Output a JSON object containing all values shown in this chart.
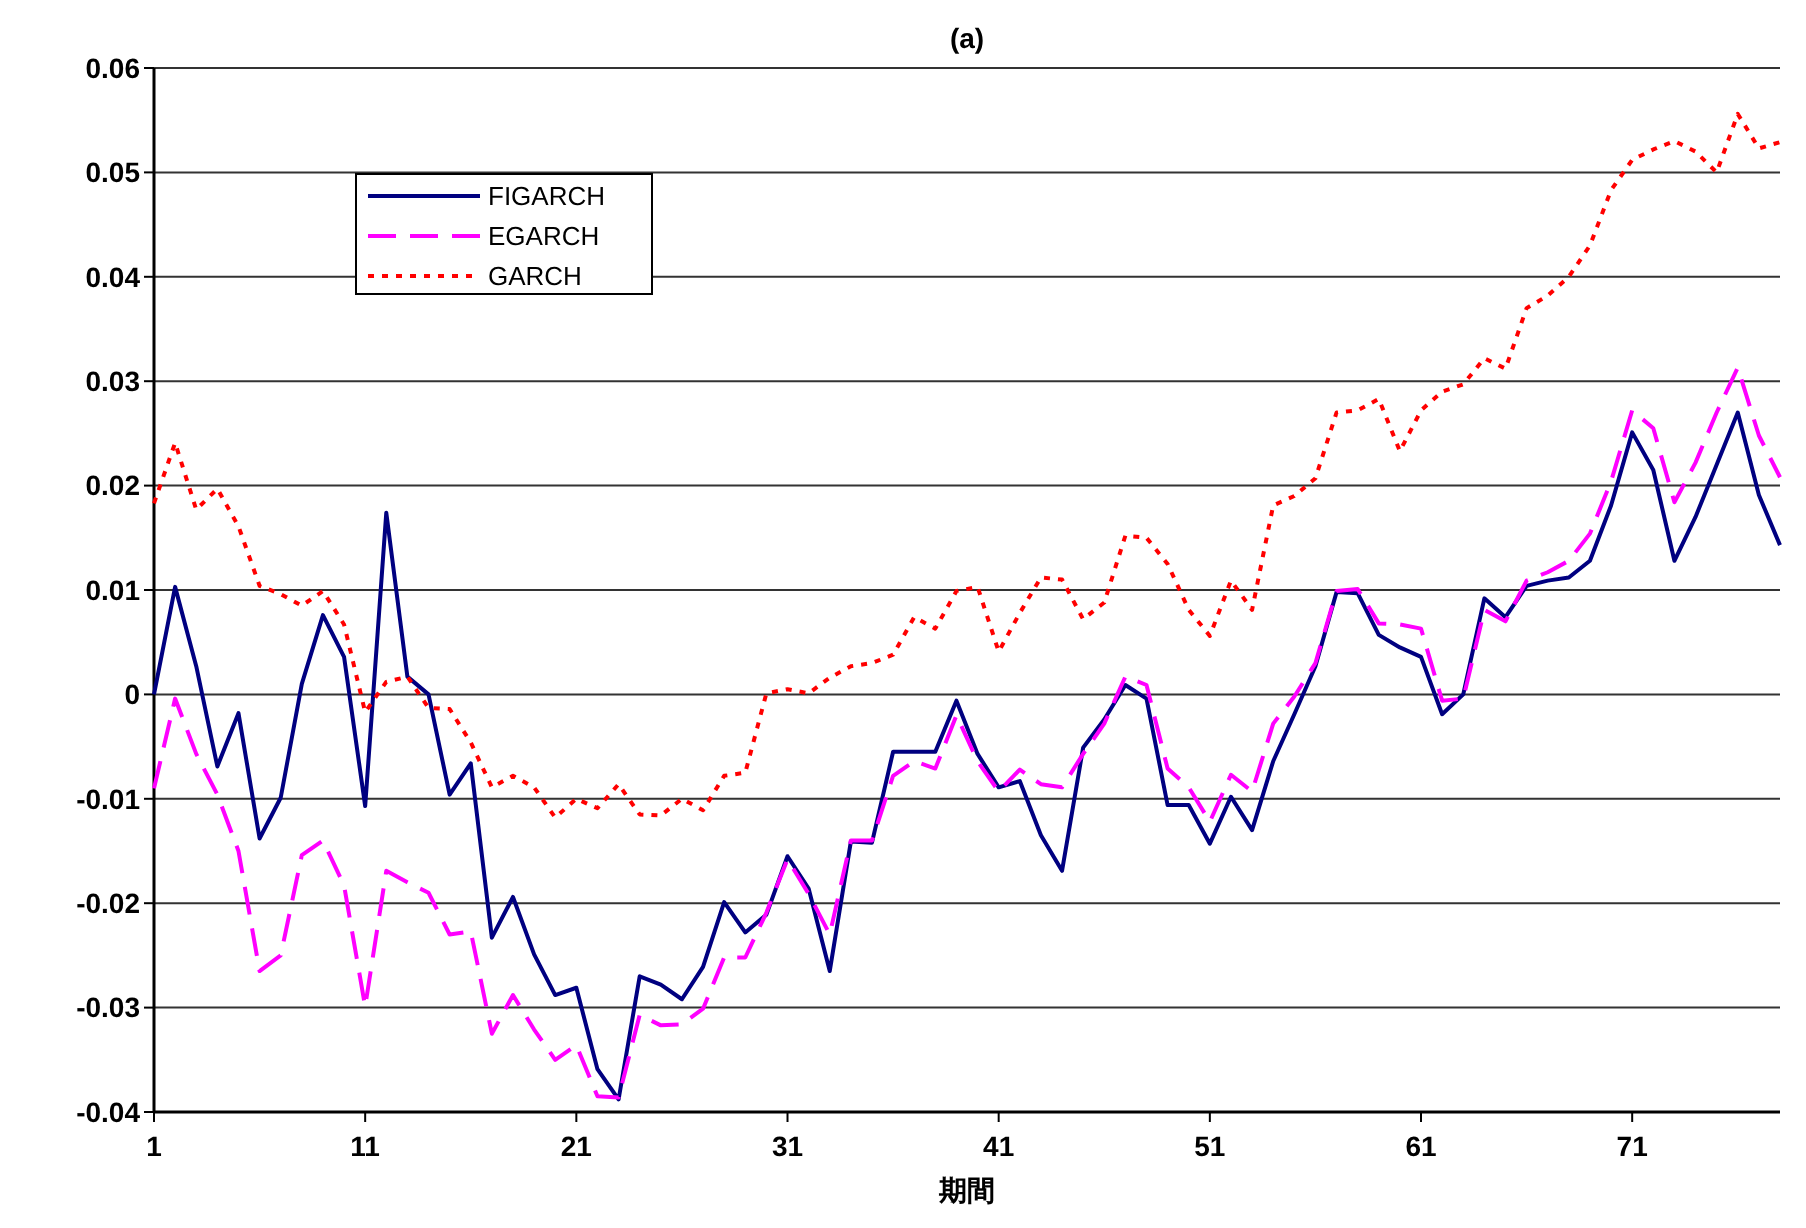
{
  "chart_data": {
    "type": "line",
    "title": "(a)",
    "xlabel": "期間",
    "x": [
      1,
      2,
      3,
      4,
      5,
      6,
      7,
      8,
      9,
      10,
      11,
      12,
      13,
      14,
      15,
      16,
      17,
      18,
      19,
      20,
      21,
      22,
      23,
      24,
      25,
      26,
      27,
      28,
      29,
      30,
      31,
      32,
      33,
      34,
      35,
      36,
      37,
      38,
      39,
      40,
      41,
      42,
      43,
      44,
      45,
      46,
      47,
      48,
      49,
      50,
      51,
      52,
      53,
      54,
      55,
      56,
      57,
      58,
      59,
      60,
      61,
      62,
      63,
      64,
      65,
      66,
      67,
      68,
      69,
      70,
      71,
      72,
      73,
      74,
      75,
      76,
      77,
      78
    ],
    "xlim": [
      1,
      78
    ],
    "xticks": [
      1,
      11,
      21,
      31,
      41,
      51,
      61,
      71
    ],
    "ylim": [
      -0.04,
      0.06
    ],
    "yticks": [
      -0.04,
      -0.03,
      -0.02,
      -0.01,
      0,
      0.01,
      0.02,
      0.03,
      0.04,
      0.05,
      0.06
    ],
    "grid": "y",
    "legend": "top left",
    "series": [
      {
        "name": "FIGARCH",
        "color": "#000080",
        "line_style": "solid",
        "values": [
          0.0,
          0.0103,
          0.0027,
          -0.0069,
          -0.0018,
          -0.0138,
          -0.0099,
          0.001,
          0.0076,
          0.0036,
          -0.0107,
          0.0174,
          0.0017,
          0.0,
          -0.0096,
          -0.0066,
          -0.0233,
          -0.0194,
          -0.0249,
          -0.0288,
          -0.0281,
          -0.0359,
          -0.0388,
          -0.027,
          -0.0278,
          -0.0292,
          -0.0261,
          -0.0199,
          -0.0228,
          -0.0211,
          -0.0155,
          -0.0186,
          -0.0265,
          -0.0141,
          -0.0142,
          -0.0055,
          -0.0055,
          -0.0055,
          -0.0006,
          -0.0057,
          -0.0089,
          -0.0083,
          -0.0135,
          -0.0169,
          -0.0051,
          -0.0024,
          0.0009,
          -0.0004,
          -0.0106,
          -0.0106,
          -0.0143,
          -0.0098,
          -0.013,
          -0.0064,
          -0.0019,
          0.0027,
          0.0098,
          0.0097,
          0.0057,
          0.0045,
          0.0036,
          -0.0019,
          0.0,
          0.0092,
          0.0074,
          0.0104,
          0.0109,
          0.0112,
          0.0128,
          0.0181,
          0.0251,
          0.0215,
          0.0128,
          0.017,
          0.022,
          0.027,
          0.0191,
          0.0143
        ]
      },
      {
        "name": "EGARCH",
        "color": "#ff00ff",
        "line_style": "dashed",
        "values": [
          -0.009,
          -0.0004,
          -0.0057,
          -0.0096,
          -0.015,
          -0.0265,
          -0.025,
          -0.0154,
          -0.014,
          -0.0183,
          -0.0299,
          -0.0169,
          -0.018,
          -0.019,
          -0.023,
          -0.0227,
          -0.0325,
          -0.0288,
          -0.0321,
          -0.035,
          -0.0336,
          -0.0385,
          -0.0386,
          -0.0307,
          -0.0317,
          -0.0316,
          -0.0301,
          -0.0252,
          -0.0252,
          -0.0209,
          -0.0158,
          -0.0191,
          -0.023,
          -0.014,
          -0.014,
          -0.0078,
          -0.0064,
          -0.0071,
          -0.002,
          -0.0064,
          -0.0093,
          -0.0072,
          -0.0086,
          -0.0089,
          -0.0057,
          -0.0028,
          0.0017,
          0.0009,
          -0.0071,
          -0.0089,
          -0.0122,
          -0.0077,
          -0.0093,
          -0.0028,
          -0.0002,
          0.003,
          0.0099,
          0.0101,
          0.0068,
          0.0067,
          0.0063,
          -0.0006,
          -0.0004,
          0.0081,
          0.007,
          0.0109,
          0.0117,
          0.0128,
          0.0154,
          0.0204,
          0.0272,
          0.0255,
          0.0184,
          0.0222,
          0.027,
          0.0313,
          0.0248,
          0.0208
        ]
      },
      {
        "name": "GARCH",
        "color": "#ff0000",
        "line_style": "dotted",
        "values": [
          0.0183,
          0.0241,
          0.0177,
          0.0197,
          0.0161,
          0.0104,
          0.0096,
          0.0085,
          0.0099,
          0.0067,
          -0.0017,
          0.0012,
          0.0017,
          -0.0013,
          -0.0014,
          -0.0046,
          -0.0089,
          -0.0078,
          -0.0089,
          -0.0118,
          -0.01,
          -0.0109,
          -0.0086,
          -0.0115,
          -0.0116,
          -0.01,
          -0.0111,
          -0.0078,
          -0.0075,
          0.0001,
          0.0005,
          0.0001,
          0.0016,
          0.0027,
          0.003,
          0.0038,
          0.0074,
          0.0063,
          0.0099,
          0.0103,
          0.0041,
          0.0078,
          0.0112,
          0.011,
          0.0072,
          0.0088,
          0.0152,
          0.015,
          0.0125,
          0.0081,
          0.0056,
          0.0109,
          0.0081,
          0.0181,
          0.019,
          0.0207,
          0.027,
          0.0272,
          0.0283,
          0.0233,
          0.0272,
          0.029,
          0.0297,
          0.0322,
          0.0312,
          0.037,
          0.0382,
          0.04,
          0.043,
          0.0483,
          0.0512,
          0.0522,
          0.053,
          0.052,
          0.05,
          0.0556,
          0.0523,
          0.0529
        ]
      }
    ]
  }
}
